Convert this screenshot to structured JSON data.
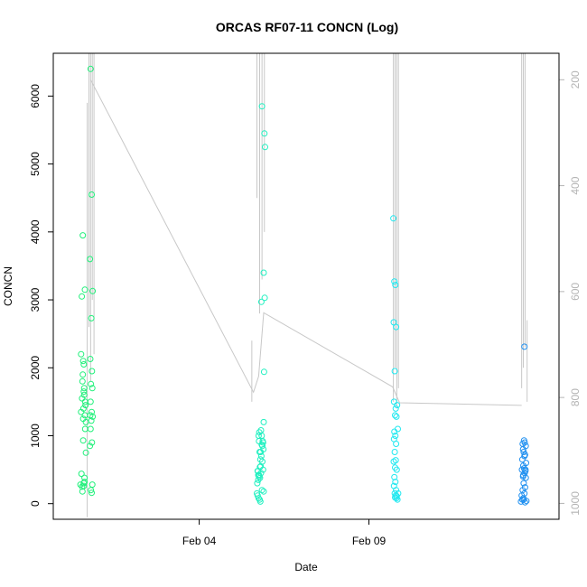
{
  "chart_data": {
    "type": "scatter",
    "title": "ORCAS RF07-11 CONCN (Log)",
    "xlabel": "Date",
    "ylabel": "CONCN",
    "x_ticks": [
      "Feb 04",
      "Feb 09"
    ],
    "x_tick_dates": [
      4,
      9
    ],
    "xlim": [
      -0.3,
      14.6
    ],
    "ylim": [
      -230,
      6630
    ],
    "y_ticks": [
      0,
      1000,
      2000,
      3000,
      4000,
      5000,
      6000
    ],
    "y2lim": [
      1030,
      150
    ],
    "y2_ticks": [
      200,
      400,
      600,
      800,
      1000
    ],
    "colors": {
      "grey_line": "#c8c8c8",
      "c1": "#20f07a",
      "c2": "#20f0c0",
      "c3": "#20e8f0",
      "c4": "#2090f0",
      "right_axis": "#b4b4b4"
    },
    "series": [
      {
        "color": "#20f07a",
        "x": [
          0.5,
          0.6,
          0.55,
          0.62,
          0.58,
          0.66,
          0.52,
          0.64,
          0.56,
          0.6,
          0.63,
          0.54,
          0.57,
          0.61,
          0.59,
          0.65,
          0.53,
          0.62,
          0.58,
          0.66,
          0.55,
          0.6,
          0.63,
          0.57,
          0.52,
          0.61,
          0.64,
          0.56,
          0.6,
          0.58,
          0.8,
          0.83,
          0.78,
          0.86,
          0.82,
          0.79,
          0.84,
          0.81,
          0.85,
          0.8,
          0.83,
          0.79,
          0.86,
          0.82,
          0.8,
          0.84,
          0.78,
          0.85,
          0.81,
          0.83
        ],
        "y": [
          280,
          300,
          250,
          320,
          2100,
          1200,
          1350,
          1500,
          1800,
          2050,
          3150,
          3050,
          3950,
          1600,
          1400,
          1450,
          440,
          380,
          930,
          750,
          1550,
          1650,
          1300,
          1900,
          2200,
          1700,
          1100,
          180,
          260,
          1250,
          6400,
          4550,
          3600,
          3130,
          2730,
          2130,
          1950,
          1760,
          1700,
          1500,
          1350,
          1300,
          1280,
          1220,
          1100,
          900,
          850,
          280,
          200,
          160
        ]
      },
      {
        "color": "#20f0c0",
        "x": [
          5.7,
          5.75,
          5.8,
          5.72,
          5.78,
          5.85,
          5.9,
          5.82,
          5.76,
          5.88,
          5.74,
          5.81,
          5.79,
          5.86,
          5.71,
          5.83,
          5.77,
          5.89,
          5.73,
          5.84,
          5.8,
          5.78,
          5.87,
          5.75,
          5.82,
          5.9,
          5.76,
          5.84,
          5.79,
          5.72,
          5.86,
          5.81,
          5.74,
          5.88,
          5.77,
          5.83,
          5.85,
          5.92,
          5.94,
          5.9,
          5.93,
          5.91
        ],
        "y": [
          150,
          80,
          30,
          120,
          60,
          200,
          180,
          450,
          420,
          500,
          350,
          550,
          380,
          620,
          300,
          700,
          400,
          800,
          480,
          870,
          650,
          760,
          920,
          1000,
          1080,
          1200,
          920,
          1000,
          540,
          480,
          850,
          760,
          420,
          900,
          1050,
          2970,
          5850,
          5450,
          5250,
          3400,
          3030,
          1940
        ]
      },
      {
        "color": "#20e8f0",
        "x": [
          9.72,
          9.75,
          9.78,
          9.73,
          9.8,
          9.76,
          9.74,
          9.79,
          9.77,
          9.81,
          9.75,
          9.78,
          9.74,
          9.8,
          9.76,
          9.79,
          9.73,
          9.77,
          9.82,
          9.75,
          9.78,
          9.74,
          9.8,
          9.76,
          9.79,
          9.77,
          9.81,
          9.84,
          9.82,
          9.86,
          9.83,
          9.85
        ],
        "y": [
          4200,
          3270,
          3220,
          2670,
          2600,
          1950,
          1500,
          1400,
          1300,
          1280,
          1060,
          1000,
          950,
          880,
          760,
          640,
          620,
          530,
          500,
          390,
          320,
          260,
          200,
          150,
          120,
          90,
          80,
          60,
          110,
          150,
          1450,
          1100
        ]
      },
      {
        "color": "#2090f0",
        "x": [
          13.48,
          13.52,
          13.55,
          13.5,
          13.58,
          13.53,
          13.6,
          13.56,
          13.62,
          13.54,
          13.59,
          13.51,
          13.57,
          13.61,
          13.55,
          13.63,
          13.52,
          13.58,
          13.6,
          13.56,
          13.54,
          13.62,
          13.59,
          13.57,
          13.53,
          13.61,
          13.55,
          13.58,
          13.64,
          13.6,
          13.56
        ],
        "y": [
          30,
          60,
          80,
          120,
          150,
          200,
          240,
          300,
          380,
          400,
          450,
          500,
          520,
          480,
          560,
          600,
          650,
          700,
          720,
          760,
          800,
          850,
          900,
          930,
          880,
          500,
          420,
          2310,
          40,
          20,
          60
        ]
      }
    ],
    "line_y2": {
      "x": [
        0.8,
        5.6,
        5.75,
        5.9,
        9.7,
        9.9,
        13.5
      ],
      "y2": [
        200,
        790,
        760,
        640,
        780,
        810,
        815
      ]
    }
  }
}
